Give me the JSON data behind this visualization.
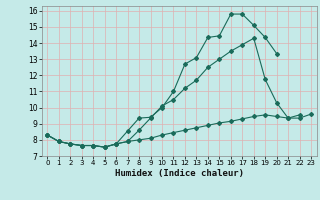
{
  "title": "",
  "xlabel": "Humidex (Indice chaleur)",
  "ylabel": "",
  "xlim": [
    -0.5,
    23.5
  ],
  "ylim": [
    7,
    16.3
  ],
  "yticks": [
    7,
    8,
    9,
    10,
    11,
    12,
    13,
    14,
    15,
    16
  ],
  "xticks": [
    0,
    1,
    2,
    3,
    4,
    5,
    6,
    7,
    8,
    9,
    10,
    11,
    12,
    13,
    14,
    15,
    16,
    17,
    18,
    19,
    20,
    21,
    22,
    23
  ],
  "bg_color": "#c5eae8",
  "grid_color": "#e0b0b0",
  "line_color": "#1a6b5a",
  "line1_y": [
    8.3,
    7.9,
    7.75,
    7.65,
    7.65,
    7.55,
    7.75,
    8.55,
    9.35,
    9.4,
    10.0,
    11.0,
    12.7,
    13.1,
    14.35,
    14.45,
    15.8,
    15.8,
    15.1,
    14.35,
    13.35,
    null,
    null,
    null
  ],
  "line2_y": [
    8.3,
    7.9,
    7.75,
    7.65,
    7.65,
    7.55,
    7.75,
    7.9,
    8.6,
    9.35,
    10.1,
    10.5,
    11.2,
    11.7,
    12.5,
    13.0,
    13.5,
    13.9,
    14.3,
    11.75,
    10.3,
    9.35,
    9.55,
    null
  ],
  "line3_y": [
    8.3,
    7.9,
    7.75,
    7.65,
    7.65,
    7.55,
    7.75,
    7.9,
    8.0,
    8.1,
    8.3,
    8.45,
    8.6,
    8.75,
    8.9,
    9.05,
    9.15,
    9.3,
    9.45,
    9.55,
    9.45,
    9.35,
    9.35,
    9.6
  ]
}
